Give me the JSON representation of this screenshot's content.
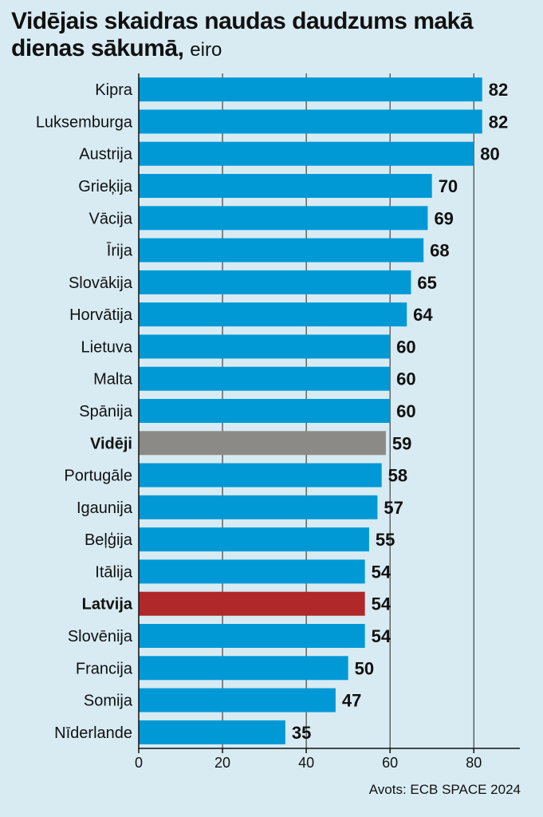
{
  "title": "Vidējais skaidras naudas daudzums makā dienas sākumā,",
  "unit": "eiro",
  "source": "Avots: ECB SPACE 2024",
  "colors": {
    "bar": "#0099d6",
    "average": "#8c8a87",
    "highlight": "#b0282a",
    "background": "#d8ebf3"
  },
  "chart_data": {
    "type": "bar",
    "orientation": "horizontal",
    "categories": [
      "Kipra",
      "Luksemburga",
      "Austrija",
      "Grieķija",
      "Vācija",
      "Īrija",
      "Slovākija",
      "Horvātija",
      "Lietuva",
      "Malta",
      "Spānija",
      "Vidēji",
      "Portugāle",
      "Igaunija",
      "Beļģija",
      "Itālija",
      "Latvija",
      "Slovēnija",
      "Francija",
      "Somija",
      "Nīderlande"
    ],
    "values": [
      82,
      82,
      80,
      70,
      69,
      68,
      65,
      64,
      60,
      60,
      60,
      59,
      58,
      57,
      55,
      54,
      54,
      54,
      50,
      47,
      35
    ],
    "bar_colors": [
      "bar",
      "bar",
      "bar",
      "bar",
      "bar",
      "bar",
      "bar",
      "bar",
      "bar",
      "bar",
      "bar",
      "average",
      "bar",
      "bar",
      "bar",
      "bar",
      "highlight",
      "bar",
      "bar",
      "bar",
      "bar"
    ],
    "bold_categories": [
      "Vidēji",
      "Latvija"
    ],
    "x_ticks": [
      0,
      20,
      40,
      60,
      80
    ],
    "xlim": [
      0,
      91
    ],
    "grid": "vertical",
    "xlabel": "",
    "ylabel": ""
  }
}
